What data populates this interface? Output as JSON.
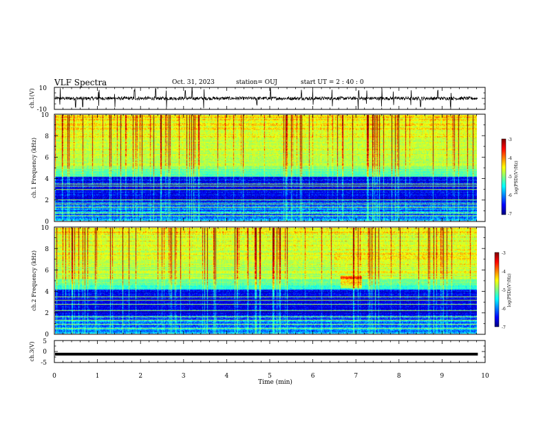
{
  "header": {
    "title": "VLF Spectra",
    "date": "Oct. 31, 2023",
    "station": "station= OUJ",
    "start": "start  UT =   2 : 40 : 0"
  },
  "chart_data": [
    {
      "type": "line",
      "name": "ch1-waveform",
      "ylabel": "ch.1(V)",
      "ylim": [
        -10,
        10
      ],
      "y_ticks": [
        "10",
        "-10"
      ],
      "xlim": [
        0,
        10
      ],
      "baseline": 0,
      "noise_amplitude": 1.5,
      "spike_times_min": [
        0.13,
        0.49,
        0.66,
        1.03,
        1.4,
        1.86,
        2.35,
        2.6,
        3.04,
        3.2,
        3.47,
        4.7,
        5.02,
        5.74,
        6.0,
        6.45,
        7.06,
        7.25,
        7.6,
        7.87,
        8.28,
        8.5,
        8.9,
        9.2
      ]
    },
    {
      "type": "heatmap",
      "name": "ch1-spectrogram",
      "ylabel": "ch.1 Frequency (kHz)",
      "ylim": [
        0,
        10
      ],
      "y_ticks": [
        "0",
        "2",
        "4",
        "6",
        "8",
        "10"
      ],
      "xlim": [
        0,
        10
      ],
      "colorbar_label": "log(PSD)(V²/Hz)",
      "colorbar_range": [
        -7,
        -3
      ],
      "colorbar_ticks": [
        "-3",
        "-4",
        "-5",
        "-6",
        "-7"
      ],
      "narrowband_lines_khz": [
        0.5,
        0.8,
        1.3,
        1.6,
        2.0,
        3.0,
        3.3,
        3.5
      ]
    },
    {
      "type": "heatmap",
      "name": "ch2-spectrogram",
      "ylabel": "ch.2 Frequency (kHz)",
      "ylim": [
        0,
        10
      ],
      "y_ticks": [
        "0",
        "2",
        "4",
        "6",
        "8",
        "10"
      ],
      "xlim": [
        0,
        10
      ],
      "colorbar_label": "log(PSD)(V²/Hz)",
      "colorbar_range": [
        -7,
        -3
      ],
      "colorbar_ticks": [
        "-3",
        "-4",
        "-5",
        "-6",
        "-7"
      ],
      "narrowband_lines_khz": [
        0.5,
        0.9,
        1.3,
        1.6,
        2.2,
        2.8,
        3.2,
        3.5
      ]
    },
    {
      "type": "line",
      "name": "ch3-waveform",
      "ylabel": "ch.3(V)",
      "ylim": [
        -5,
        5
      ],
      "y_ticks": [
        "5",
        "0",
        "-5"
      ],
      "xlim": [
        0,
        10
      ],
      "baseline": -1.2,
      "noise_amplitude": 0.2
    }
  ],
  "x_axis": {
    "label": "Time (min)",
    "ticks": [
      "0",
      "1",
      "2",
      "3",
      "4",
      "5",
      "6",
      "7",
      "8",
      "9",
      "10"
    ],
    "data_end_min": 9.83
  },
  "colors": {
    "trace": "#000000",
    "colormap": [
      "#00007f",
      "#0000ff",
      "#00ffff",
      "#7fff7f",
      "#ffff00",
      "#ff0000",
      "#7f0000"
    ]
  }
}
